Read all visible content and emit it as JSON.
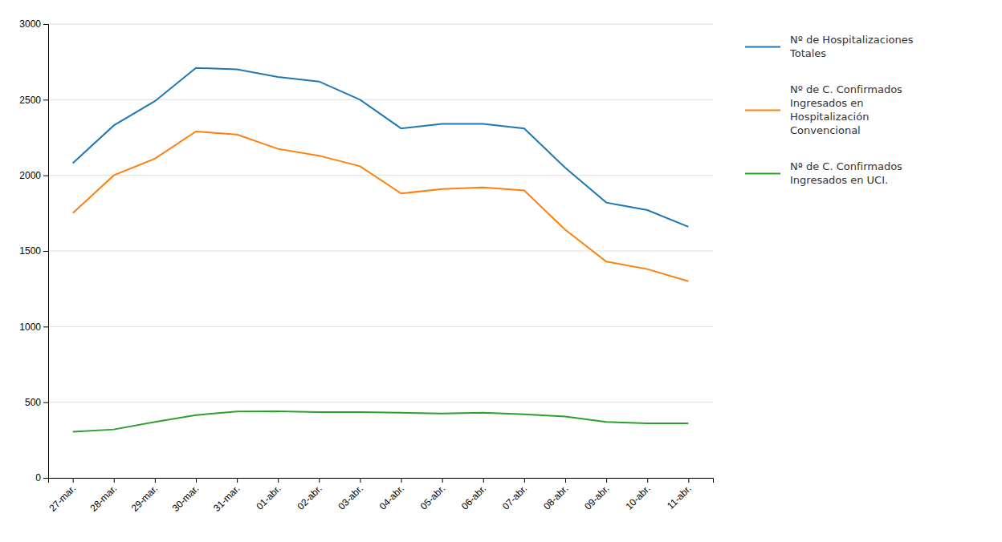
{
  "chart_data": {
    "type": "line",
    "categories": [
      "27-mar.",
      "28-mar.",
      "29-mar.",
      "30-mar.",
      "31-mar.",
      "01-abr.",
      "02-abr.",
      "03-abr.",
      "04-abr.",
      "05-abr.",
      "06-abr.",
      "07-abr.",
      "08-abr.",
      "09-abr.",
      "10-abr.",
      "11-abr."
    ],
    "series": [
      {
        "name": "Nº de Hospitalizaciones\nTotales",
        "values": [
          2080,
          2330,
          2490,
          2710,
          2700,
          2650,
          2620,
          2500,
          2310,
          2340,
          2340,
          2310,
          2050,
          1820,
          1770,
          1660
        ]
      },
      {
        "name": "Nº de C. Confirmados\nIngresados en\nHospitalización\nConvencional",
        "values": [
          1750,
          2000,
          2110,
          2290,
          2270,
          2175,
          2130,
          2060,
          1880,
          1910,
          1920,
          1900,
          1640,
          1430,
          1380,
          1300
        ]
      },
      {
        "name": "Nª de C. Confirmados\nIngresados en UCI.",
        "values": [
          305,
          320,
          370,
          415,
          438,
          440,
          435,
          435,
          430,
          425,
          430,
          420,
          405,
          370,
          360,
          360
        ]
      }
    ],
    "ylim": [
      0,
      3000
    ],
    "yticks": [
      0,
      500,
      1000,
      1500,
      2000,
      2500,
      3000
    ],
    "grid": true,
    "legend": "right"
  }
}
